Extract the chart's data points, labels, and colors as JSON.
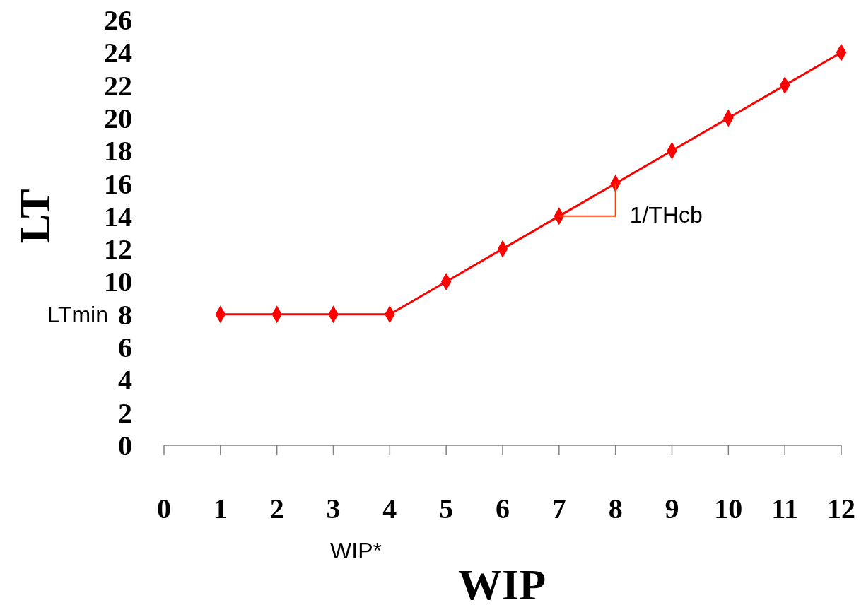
{
  "chart_data": {
    "type": "line",
    "xlabel": "WIP",
    "ylabel": "LT",
    "x": [
      1,
      2,
      3,
      4,
      5,
      6,
      7,
      8,
      9,
      10,
      11,
      12
    ],
    "series": [
      {
        "color": "#ff0000",
        "values": [
          8,
          8,
          8,
          8,
          10,
          12,
          14,
          16,
          18,
          20,
          22,
          24
        ]
      }
    ],
    "xlim": [
      0,
      12
    ],
    "xticks": [
      0,
      1,
      2,
      3,
      4,
      5,
      6,
      7,
      8,
      9,
      10,
      11,
      12
    ],
    "ylim": [
      0,
      26
    ],
    "yticks": [
      0,
      2,
      4,
      6,
      8,
      10,
      12,
      14,
      16,
      18,
      20,
      22,
      24,
      26
    ],
    "marker": "diamond",
    "line_style": "solid",
    "grid": false,
    "annotations": [
      "LTmin",
      "WIP*",
      {
        "text": "1/THcb",
        "x": 8,
        "y": 16
      }
    ]
  }
}
